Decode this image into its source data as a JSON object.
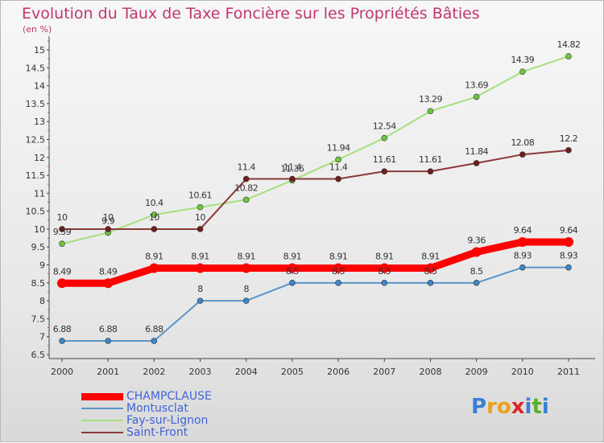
{
  "title": "Evolution du Taux de Taxe Foncière sur les Propriétés Bâties",
  "subtitle": "(en %)",
  "logo": {
    "text": "Proxiti",
    "letters": [
      {
        "ch": "P",
        "color": "#3a7fd5"
      },
      {
        "ch": "r",
        "color": "#e8a21a"
      },
      {
        "ch": "o",
        "color": "#e8a21a"
      },
      {
        "ch": "x",
        "color": "#d92727"
      },
      {
        "ch": "i",
        "color": "#3a7fd5"
      },
      {
        "ch": "t",
        "color": "#59b02b"
      },
      {
        "ch": "i",
        "color": "#3a7fd5"
      }
    ]
  },
  "chart_data": {
    "type": "line",
    "x": [
      "2000",
      "2001",
      "2002",
      "2003",
      "2004",
      "2005",
      "2006",
      "2007",
      "2008",
      "2009",
      "2010",
      "2011"
    ],
    "ylim": [
      6.5,
      15
    ],
    "yticks": [
      "6.5",
      "7",
      "7.5",
      "8",
      "8.5",
      "9",
      "9.5",
      "10",
      "10.5",
      "11",
      "11.5",
      "12",
      "12.5",
      "13",
      "13.5",
      "14",
      "14.5",
      "15"
    ],
    "grid": false,
    "series": [
      {
        "name": "CHAMPCLAUSE",
        "color": "#ff0000",
        "width": 9,
        "marker": "#ff0000",
        "values": [
          8.49,
          8.49,
          8.91,
          8.91,
          8.91,
          8.91,
          8.91,
          8.91,
          8.91,
          9.36,
          9.64,
          9.64
        ],
        "labels": [
          "8.49",
          "8.49",
          "8.91",
          "8.91",
          "8.91",
          "8.91",
          "8.91",
          "8.91",
          "8.91",
          "9.36",
          "9.64",
          "9.64"
        ]
      },
      {
        "name": "Montusclat",
        "color": "#5b95c8",
        "width": 2,
        "marker": "#3d86c9",
        "values": [
          6.88,
          6.88,
          6.88,
          8,
          8,
          8.5,
          8.5,
          8.5,
          8.5,
          8.5,
          8.93,
          8.93
        ],
        "labels": [
          "6.88",
          "6.88",
          "6.88",
          "8",
          "8",
          "8.5",
          "8.5",
          "8.5",
          "8.5",
          "8.5",
          "8.93",
          "8.93"
        ]
      },
      {
        "name": "Fay-sur-Lignon",
        "color": "#a5e07e",
        "width": 2,
        "marker": "#6cc640",
        "values": [
          9.59,
          9.9,
          10.4,
          10.61,
          10.82,
          11.36,
          11.94,
          12.54,
          13.29,
          13.69,
          14.39,
          14.82
        ],
        "labels": [
          "9.59",
          "9.9",
          "10.4",
          "10.61",
          "10.82",
          "11.36",
          "11.94",
          "12.54",
          "13.29",
          "13.69",
          "14.39",
          "14.82"
        ]
      },
      {
        "name": "Saint-Front",
        "color": "#8b3a3a",
        "width": 2,
        "marker": "#6e1e1e",
        "values": [
          10,
          10,
          10,
          10,
          11.4,
          11.4,
          11.4,
          11.61,
          11.61,
          11.84,
          12.08,
          12.2
        ],
        "labels": [
          "10",
          "10",
          "10",
          "10",
          "11.4",
          "11.4",
          "11.4",
          "11.61",
          "11.61",
          "11.84",
          "12.08",
          "12.2"
        ]
      }
    ],
    "legend_placement": "bottom-left"
  }
}
